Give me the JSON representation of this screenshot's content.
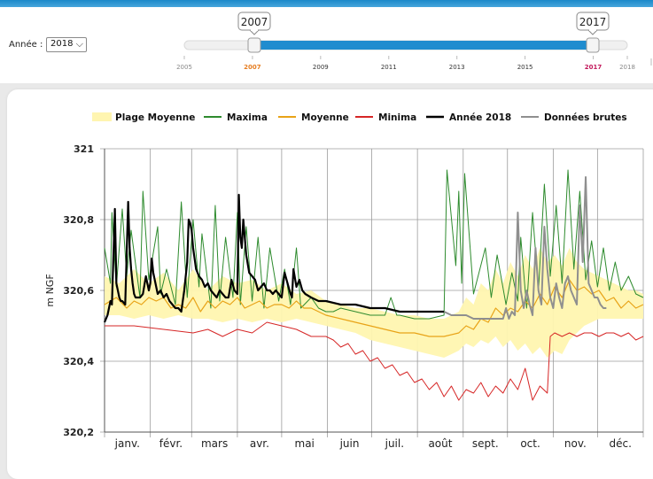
{
  "year_selector": {
    "label": "Année :",
    "value": "2018"
  },
  "range_slider": {
    "min_label": "2007",
    "max_label": "2017",
    "from_year": 2007,
    "to_year": 2017,
    "ticks": [
      "2005",
      "2007",
      "2009",
      "2011",
      "2013",
      "2015",
      "2017",
      "2018"
    ],
    "highlight_start_color": "#e67e22",
    "highlight_end_color": "#c2185b",
    "track_color": "#1f8ccf"
  },
  "chart_data": {
    "type": "line",
    "ylabel": "m NGF",
    "y_tick_labels": [
      "320,2",
      "320,4",
      "320,6",
      "320,8",
      "321"
    ],
    "y_ticks": [
      320.2,
      320.4,
      320.6,
      320.8,
      321.0
    ],
    "ylim": [
      320.2,
      321.0
    ],
    "xlim": [
      0,
      365
    ],
    "grid": true,
    "legend_position": "top",
    "months": [
      "janv.",
      "févr.",
      "mars",
      "avr.",
      "mai",
      "juin",
      "juil.",
      "août",
      "sept.",
      "oct.",
      "nov.",
      "déc."
    ],
    "legend": [
      {
        "name": "Plage Moyenne",
        "color": "#fff5b0"
      },
      {
        "name": "Maxima",
        "color": "#2e8b2e"
      },
      {
        "name": "Moyenne",
        "color": "#e8a317"
      },
      {
        "name": "Minima",
        "color": "#d62626"
      },
      {
        "name": "Année 2018",
        "color": "#000000"
      },
      {
        "name": "Données brutes",
        "color": "#8f8f8f"
      }
    ],
    "series": {
      "maxima": {
        "x": [
          0,
          4,
          5,
          8,
          12,
          15,
          18,
          24,
          26,
          30,
          36,
          38,
          42,
          48,
          52,
          56,
          60,
          64,
          66,
          72,
          75,
          78,
          82,
          87,
          90,
          92,
          96,
          100,
          104,
          108,
          112,
          118,
          122,
          126,
          130,
          133,
          140,
          145,
          150,
          155,
          160,
          170,
          180,
          190,
          194,
          198,
          200,
          210,
          220,
          230,
          232,
          238,
          240,
          242,
          244,
          250,
          258,
          262,
          266,
          272,
          276,
          280,
          282,
          286,
          290,
          294,
          298,
          302,
          306,
          310,
          314,
          318,
          322,
          326,
          330,
          334,
          338,
          342,
          346,
          350,
          355,
          360,
          365
        ],
        "y": [
          320.72,
          320.62,
          320.82,
          320.61,
          320.83,
          320.64,
          320.77,
          320.58,
          320.88,
          320.63,
          320.78,
          320.59,
          320.66,
          320.56,
          320.85,
          320.58,
          320.8,
          320.61,
          320.76,
          320.55,
          320.84,
          320.57,
          320.75,
          320.58,
          320.82,
          320.56,
          320.78,
          320.57,
          320.75,
          320.55,
          320.72,
          320.57,
          320.66,
          320.56,
          320.72,
          320.55,
          320.58,
          320.55,
          320.54,
          320.54,
          320.55,
          320.54,
          320.53,
          320.53,
          320.58,
          320.53,
          320.53,
          320.52,
          320.52,
          320.53,
          320.94,
          320.67,
          320.88,
          320.62,
          320.93,
          320.59,
          320.72,
          320.58,
          320.7,
          320.56,
          320.65,
          320.57,
          320.75,
          320.55,
          320.82,
          320.6,
          320.9,
          320.64,
          320.84,
          320.62,
          320.94,
          320.66,
          320.88,
          320.63,
          320.74,
          320.61,
          320.72,
          320.6,
          320.68,
          320.6,
          320.64,
          320.59,
          320.58
        ]
      },
      "moyenne": {
        "x": [
          0,
          8,
          15,
          20,
          25,
          30,
          35,
          40,
          45,
          50,
          55,
          60,
          65,
          70,
          75,
          80,
          85,
          90,
          95,
          100,
          105,
          110,
          115,
          120,
          125,
          130,
          135,
          140,
          145,
          150,
          160,
          170,
          180,
          190,
          200,
          210,
          220,
          230,
          240,
          245,
          250,
          255,
          260,
          265,
          270,
          275,
          280,
          285,
          290,
          295,
          300,
          305,
          310,
          315,
          320,
          325,
          330,
          335,
          340,
          345,
          350,
          355,
          360,
          365
        ],
        "y": [
          320.56,
          320.58,
          320.55,
          320.57,
          320.56,
          320.58,
          320.57,
          320.58,
          320.55,
          320.56,
          320.55,
          320.58,
          320.54,
          320.57,
          320.55,
          320.57,
          320.56,
          320.58,
          320.55,
          320.56,
          320.57,
          320.55,
          320.56,
          320.56,
          320.55,
          320.57,
          320.55,
          320.55,
          320.54,
          320.53,
          320.52,
          320.51,
          320.5,
          320.49,
          320.48,
          320.48,
          320.47,
          320.47,
          320.48,
          320.5,
          320.49,
          320.52,
          320.51,
          320.55,
          320.53,
          320.55,
          320.54,
          320.57,
          320.55,
          320.59,
          320.56,
          320.61,
          320.58,
          320.63,
          320.6,
          320.61,
          320.59,
          320.6,
          320.57,
          320.58,
          320.55,
          320.57,
          320.55,
          320.56
        ]
      },
      "minima": {
        "x": [
          0,
          20,
          40,
          60,
          70,
          80,
          90,
          100,
          110,
          120,
          130,
          140,
          150,
          155,
          160,
          165,
          170,
          175,
          180,
          185,
          190,
          195,
          200,
          205,
          210,
          215,
          220,
          225,
          230,
          235,
          240,
          245,
          250,
          255,
          260,
          265,
          270,
          275,
          280,
          285,
          290,
          295,
          300,
          302,
          305,
          310,
          315,
          320,
          325,
          330,
          335,
          340,
          345,
          350,
          355,
          360,
          365
        ],
        "y": [
          320.5,
          320.5,
          320.49,
          320.48,
          320.49,
          320.47,
          320.49,
          320.48,
          320.51,
          320.5,
          320.49,
          320.47,
          320.47,
          320.46,
          320.44,
          320.45,
          320.42,
          320.43,
          320.4,
          320.41,
          320.38,
          320.39,
          320.36,
          320.37,
          320.34,
          320.35,
          320.32,
          320.34,
          320.3,
          320.33,
          320.29,
          320.32,
          320.31,
          320.34,
          320.3,
          320.33,
          320.31,
          320.35,
          320.32,
          320.38,
          320.29,
          320.33,
          320.31,
          320.47,
          320.48,
          320.47,
          320.48,
          320.47,
          320.48,
          320.48,
          320.47,
          320.48,
          320.48,
          320.47,
          320.48,
          320.46,
          320.47
        ]
      },
      "plage_upper": {
        "x": [
          0,
          10,
          20,
          30,
          40,
          50,
          60,
          70,
          80,
          90,
          100,
          110,
          120,
          130,
          140,
          150,
          160,
          170,
          180,
          190,
          200,
          210,
          220,
          230,
          240,
          245,
          250,
          255,
          260,
          265,
          270,
          275,
          280,
          285,
          290,
          295,
          300,
          305,
          310,
          315,
          320,
          325,
          330,
          335,
          340,
          345,
          350,
          355,
          360,
          365
        ],
        "y": [
          320.64,
          320.62,
          320.66,
          320.62,
          320.65,
          320.6,
          320.66,
          320.6,
          320.64,
          320.62,
          320.63,
          320.6,
          320.62,
          320.59,
          320.6,
          320.57,
          320.56,
          320.55,
          320.55,
          320.54,
          320.53,
          320.53,
          320.52,
          320.52,
          320.54,
          320.58,
          320.56,
          320.62,
          320.6,
          320.66,
          320.62,
          320.68,
          320.64,
          320.7,
          320.66,
          320.72,
          320.68,
          320.7,
          320.67,
          320.72,
          320.68,
          320.66,
          320.65,
          320.64,
          320.63,
          320.62,
          320.61,
          320.6,
          320.6,
          320.59
        ]
      },
      "plage_lower": {
        "x": [
          0,
          10,
          20,
          30,
          40,
          50,
          60,
          70,
          80,
          90,
          100,
          110,
          120,
          130,
          140,
          150,
          160,
          170,
          180,
          190,
          200,
          210,
          220,
          230,
          240,
          245,
          250,
          255,
          260,
          265,
          270,
          275,
          280,
          285,
          290,
          295,
          300,
          305,
          310,
          315,
          320,
          325,
          330,
          335,
          340,
          345,
          350,
          355,
          360,
          365
        ],
        "y": [
          320.53,
          320.53,
          320.52,
          320.53,
          320.52,
          320.53,
          320.52,
          320.52,
          320.51,
          320.52,
          320.51,
          320.52,
          320.51,
          320.52,
          320.51,
          320.5,
          320.49,
          320.48,
          320.46,
          320.45,
          320.44,
          320.43,
          320.42,
          320.41,
          320.43,
          320.45,
          320.44,
          320.46,
          320.45,
          320.47,
          320.44,
          320.46,
          320.43,
          320.45,
          320.42,
          320.44,
          320.41,
          320.43,
          320.42,
          320.46,
          320.48,
          320.5,
          320.51,
          320.52,
          320.52,
          320.52,
          320.52,
          320.52,
          320.52,
          320.52
        ]
      },
      "annee_2018": {
        "x": [
          0,
          2,
          3,
          4,
          5,
          7,
          8,
          9,
          10,
          11,
          12,
          14,
          16,
          17,
          18,
          19,
          20,
          21,
          22,
          24,
          26,
          28,
          30,
          31,
          32,
          33,
          34,
          35,
          36,
          38,
          40,
          42,
          44,
          46,
          48,
          50,
          52,
          54,
          56,
          57,
          58,
          59,
          60,
          62,
          64,
          66,
          68,
          70,
          72,
          74,
          76,
          78,
          80,
          82,
          84,
          86,
          88,
          90,
          91,
          92,
          93,
          94,
          96,
          98,
          100,
          102,
          104,
          106,
          108,
          110,
          112,
          114,
          116,
          118,
          120,
          122,
          124,
          126,
          127,
          128,
          130,
          132,
          134,
          136,
          140,
          145,
          150,
          160,
          170,
          180,
          190,
          200,
          210,
          220,
          230
        ],
        "y": [
          320.51,
          320.53,
          320.55,
          320.57,
          320.56,
          320.83,
          320.62,
          320.6,
          320.58,
          320.57,
          320.57,
          320.56,
          320.85,
          320.72,
          320.66,
          320.62,
          320.59,
          320.58,
          320.58,
          320.58,
          320.59,
          320.64,
          320.6,
          320.62,
          320.69,
          320.65,
          320.63,
          320.61,
          320.59,
          320.6,
          320.58,
          320.59,
          320.57,
          320.56,
          320.55,
          320.55,
          320.54,
          320.6,
          320.68,
          320.8,
          320.79,
          320.77,
          320.72,
          320.66,
          320.64,
          320.63,
          320.61,
          320.62,
          320.6,
          320.59,
          320.58,
          320.6,
          320.59,
          320.58,
          320.58,
          320.63,
          320.6,
          320.59,
          320.87,
          320.75,
          320.72,
          320.8,
          320.7,
          320.65,
          320.64,
          320.63,
          320.6,
          320.61,
          320.62,
          320.6,
          320.6,
          320.59,
          320.6,
          320.59,
          320.58,
          320.65,
          320.62,
          320.59,
          320.58,
          320.66,
          320.61,
          320.63,
          320.6,
          320.59,
          320.58,
          320.57,
          320.57,
          320.56,
          320.56,
          320.55,
          320.55,
          320.54,
          320.54,
          320.54,
          320.54
        ]
      },
      "donnees_brutes": {
        "x": [
          230,
          235,
          240,
          245,
          250,
          255,
          260,
          265,
          270,
          272,
          274,
          276,
          278,
          280,
          282,
          284,
          286,
          288,
          290,
          292,
          294,
          296,
          298,
          300,
          302,
          304,
          306,
          308,
          310,
          312,
          314,
          316,
          318,
          320,
          322,
          324,
          326,
          328,
          330,
          332,
          334,
          336,
          338,
          340
        ],
        "y": [
          320.54,
          320.53,
          320.53,
          320.53,
          320.52,
          320.52,
          320.52,
          320.52,
          320.52,
          320.55,
          320.52,
          320.54,
          320.53,
          320.82,
          320.6,
          320.55,
          320.6,
          320.56,
          320.53,
          320.72,
          320.6,
          320.56,
          320.78,
          320.66,
          320.58,
          320.55,
          320.62,
          320.58,
          320.55,
          320.62,
          320.64,
          320.6,
          320.58,
          320.56,
          320.84,
          320.68,
          320.92,
          320.62,
          320.6,
          320.58,
          320.58,
          320.56,
          320.55,
          320.55
        ]
      }
    }
  }
}
